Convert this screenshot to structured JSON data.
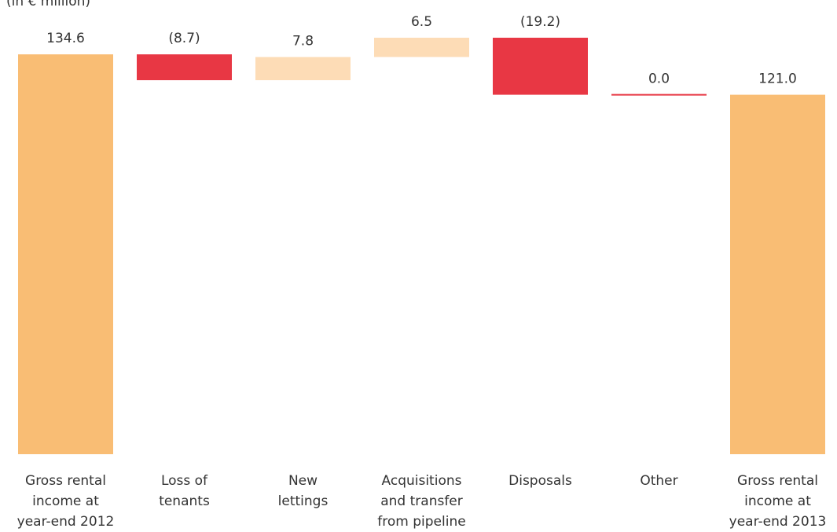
{
  "chart_data": {
    "type": "waterfall",
    "subtitle": "(in € million)",
    "categories": [
      "Gross rental\nincome at\nyear-end 2012",
      "Loss of\ntenants",
      "New\nlettings",
      "Acquisitions\nand transfer\nfrom pipeline",
      "Disposals",
      "Other",
      "Gross rental\nincome at\nyear-end 2013"
    ],
    "values": [
      134.6,
      -8.7,
      7.8,
      6.5,
      -19.2,
      0.0,
      121.0
    ],
    "value_labels": [
      "134.6",
      "(8.7)",
      "7.8",
      "6.5",
      "(19.2)",
      "0.0",
      "121.0"
    ],
    "colors": {
      "total": "#f9bd74",
      "increase": "#fddcb6",
      "decrease": "#e83744"
    }
  }
}
